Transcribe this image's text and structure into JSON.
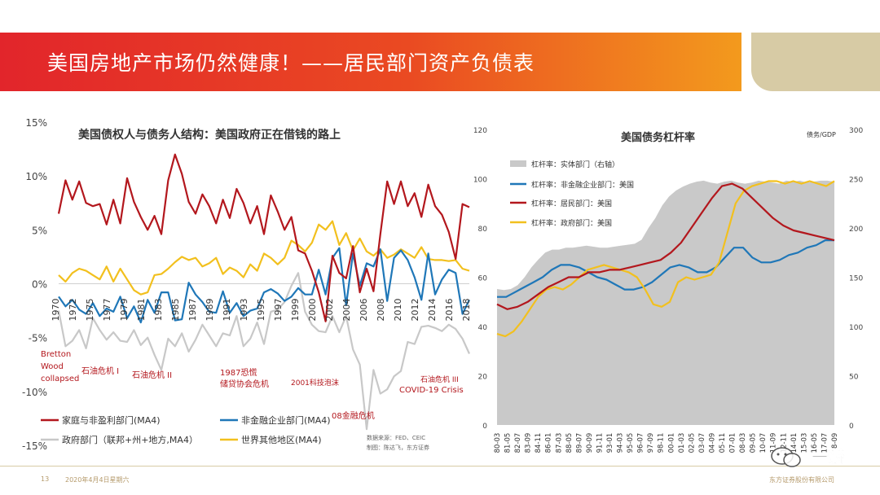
{
  "header": {
    "title": "美国房地产市场仍然健康！——居民部门资产负债表"
  },
  "footer": {
    "page_number": "13",
    "date": "2020年4月4日星期六",
    "company": "东方证券股份有限公司"
  },
  "watermark": {
    "text": "一瓣"
  },
  "colors": {
    "red": "#b3171d",
    "blue": "#1f77b8",
    "gold": "#f2c01e",
    "gray": "#c8c8c8",
    "area": "#c9c9c9"
  },
  "chart_data": [
    {
      "type": "line",
      "title": "美国债权人与债务人结构：美国政府正在借钱的路上",
      "ylim": [
        -15,
        15
      ],
      "yticks": [
        "15%",
        "10%",
        "5%",
        "0%",
        "-5%",
        "-10%",
        "-15%"
      ],
      "x_ticks": [
        "1970",
        "1972",
        "1975",
        "1977",
        "1979",
        "1981",
        "1983",
        "1985",
        "1987",
        "1989",
        "1991",
        "1993",
        "1995",
        "1997",
        "1999",
        "2000",
        "2002",
        "2004",
        "2006",
        "2008",
        "2010",
        "2012",
        "2014",
        "2016",
        "2018"
      ],
      "series": [
        {
          "name": "家庭与非盈利部门(MA4)",
          "color": "#b3171d",
          "values": [
            6.5,
            9.6,
            7.8,
            9.5,
            7.5,
            7.2,
            7.4,
            5.5,
            7.8,
            5.6,
            9.8,
            7.6,
            6.2,
            5.0,
            6.3,
            4.6,
            9.6,
            12.0,
            10.2,
            7.6,
            6.5,
            8.3,
            7.2,
            5.6,
            7.8,
            6.1,
            8.8,
            7.5,
            5.6,
            7.2,
            4.6,
            8.2,
            6.7,
            5.0,
            6.2,
            3.1,
            2.8,
            1.2,
            -0.8,
            -3.5,
            2.6,
            1.0,
            0.5,
            3.5,
            -0.8,
            1.4,
            -0.7,
            4.6,
            9.5,
            7.4,
            9.5,
            7.2,
            8.4,
            6.2,
            9.2,
            7.2,
            6.4,
            4.8,
            2.3,
            7.4,
            7.1
          ]
        },
        {
          "name": "非金融企业部门(MA4)",
          "color": "#1f77b8",
          "values": [
            -1.2,
            -2.1,
            -1.5,
            -2.4,
            -2.8,
            -1.8,
            -3.0,
            -2.3,
            -2.6,
            -1.2,
            -3.2,
            -2.1,
            -3.6,
            -1.5,
            -2.7,
            -0.8,
            -0.8,
            -3.4,
            -3.3,
            0.1,
            -1.0,
            -1.7,
            -2.6,
            -2.7,
            -0.7,
            -2.7,
            -1.8,
            -3.0,
            -2.5,
            -2.3,
            -0.8,
            -0.5,
            -0.9,
            -1.6,
            -1.2,
            -0.4,
            -1.0,
            -1.0,
            1.3,
            -1.0,
            2.4,
            3.3,
            -2.0,
            2.8,
            -0.2,
            1.9,
            1.6,
            3.2,
            -1.6,
            2.4,
            3.1,
            2.2,
            0.6,
            -1.5,
            2.8,
            -1.0,
            0.4,
            1.3,
            1.0,
            -2.8,
            -1.5
          ]
        },
        {
          "name": "政府部门（联邦+州+地方,MA4）",
          "color": "#c8c8c8",
          "values": [
            -2.5,
            -5.8,
            -5.3,
            -4.3,
            -6.0,
            -3.2,
            -4.3,
            -5.2,
            -4.5,
            -5.3,
            -5.4,
            -4.3,
            -5.7,
            -5.0,
            -6.6,
            -8.0,
            -5.1,
            -5.8,
            -4.6,
            -6.3,
            -5.2,
            -3.8,
            -4.8,
            -5.8,
            -4.6,
            -4.8,
            -3.0,
            -5.8,
            -5.1,
            -3.6,
            -5.6,
            -2.6,
            -2.4,
            -1.7,
            -0.2,
            1.0,
            -2.6,
            -3.8,
            -4.4,
            -4.5,
            -3.0,
            -4.5,
            -3.0,
            -6.1,
            -7.5,
            -13.5,
            -8.0,
            -10.2,
            -9.8,
            -8.6,
            -8.1,
            -5.4,
            -5.6,
            -4.0,
            -3.9,
            -4.1,
            -4.4,
            -3.8,
            -4.2,
            -5.1,
            -6.5
          ]
        },
        {
          "name": "世界其他地区(MA4)",
          "color": "#f2c01e",
          "values": [
            0.8,
            0.2,
            1.0,
            1.4,
            1.2,
            0.8,
            0.4,
            1.6,
            0.2,
            1.4,
            0.4,
            -0.6,
            -1.0,
            -0.8,
            0.8,
            0.9,
            1.4,
            2.0,
            2.5,
            2.2,
            2.4,
            1.6,
            1.9,
            2.4,
            0.9,
            1.5,
            1.2,
            0.6,
            1.8,
            1.2,
            2.8,
            2.4,
            1.8,
            2.4,
            4.0,
            3.6,
            3.0,
            3.8,
            5.5,
            5.0,
            5.8,
            3.6,
            4.7,
            3.1,
            4.2,
            3.0,
            2.6,
            3.2,
            2.4,
            2.7,
            3.2,
            2.8,
            2.4,
            3.4,
            2.3,
            2.2,
            2.2,
            2.1,
            2.2,
            1.4,
            1.2
          ]
        }
      ],
      "annotations": [
        "Bretton Wood collapsed",
        "石油危机 I",
        "石油危机 II",
        "1987恐慌 储贷协会危机",
        "2001科技泡沫",
        "08金融危机",
        "石油危机 III",
        "COVID-19 Crisis"
      ],
      "source": "数据来源：FED、CEIC",
      "author": "制图：陈达飞，东方证券"
    },
    {
      "type": "line",
      "title": "美国债务杠杆率",
      "ylabel_right": "债务/GDP",
      "ylim_left": [
        0,
        120
      ],
      "ylim_right": [
        0,
        300
      ],
      "yticks_left": [
        "120",
        "100",
        "80",
        "60",
        "40",
        "20",
        "0"
      ],
      "yticks_right": [
        "300",
        "250",
        "200",
        "150",
        "100",
        "50",
        "0"
      ],
      "x_ticks": [
        "80-03",
        "81-05",
        "82-07",
        "83-09",
        "84-11",
        "86-01",
        "87-03",
        "88-05",
        "89-07",
        "90-09",
        "91-11",
        "93-01",
        "94-03",
        "95-05",
        "96-07",
        "97-09",
        "98-11",
        "00-01",
        "01-03",
        "02-05",
        "03-07",
        "04-09",
        "05-11",
        "07-01",
        "08-03",
        "09-05",
        "10-07",
        "11-09",
        "12-11",
        "14-01",
        "15-03",
        "16-05",
        "17-07",
        "18-09"
      ],
      "series": [
        {
          "name": "杠杆率：实体部门（右轴）",
          "axis": "right",
          "color": "#c9c9c9",
          "values": [
            138,
            137,
            138,
            142,
            150,
            160,
            168,
            175,
            178,
            178,
            180,
            180,
            181,
            182,
            181,
            180,
            180,
            181,
            182,
            183,
            184,
            188,
            200,
            210,
            223,
            232,
            238,
            242,
            245,
            247,
            248,
            246,
            245,
            247,
            248,
            246,
            245,
            246,
            248,
            247,
            246,
            245,
            248,
            247,
            248,
            246,
            247,
            248,
            248,
            247
          ]
        },
        {
          "name": "杠杆率：非金融企业部门：美国",
          "axis": "left",
          "color": "#1f77b8",
          "values": [
            52,
            52,
            54,
            56,
            58,
            60,
            63,
            65,
            65,
            64,
            62,
            60,
            59,
            57,
            55,
            55,
            56,
            58,
            61,
            64,
            65,
            64,
            62,
            62,
            64,
            68,
            72,
            72,
            68,
            66,
            66,
            67,
            69,
            70,
            72,
            73,
            75,
            75
          ]
        },
        {
          "name": "杠杆率：居民部门：美国",
          "axis": "left",
          "color": "#b3171d",
          "values": [
            49,
            47,
            48,
            50,
            53,
            56,
            58,
            60,
            60,
            62,
            62,
            63,
            63,
            64,
            65,
            66,
            67,
            70,
            74,
            80,
            86,
            92,
            97,
            98,
            96,
            92,
            88,
            84,
            81,
            79,
            78,
            77,
            76,
            75
          ]
        },
        {
          "name": "杠杆率：政府部门：美国",
          "axis": "left",
          "color": "#f2c01e",
          "values": [
            37,
            36,
            38,
            42,
            47,
            52,
            55,
            56,
            55,
            57,
            60,
            63,
            64,
            65,
            64,
            63,
            62,
            60,
            55,
            49,
            48,
            50,
            58,
            60,
            59,
            60,
            61,
            66,
            78,
            90,
            95,
            97,
            98,
            99,
            99,
            98,
            99,
            98,
            99,
            98,
            97,
            99
          ]
        }
      ]
    }
  ]
}
